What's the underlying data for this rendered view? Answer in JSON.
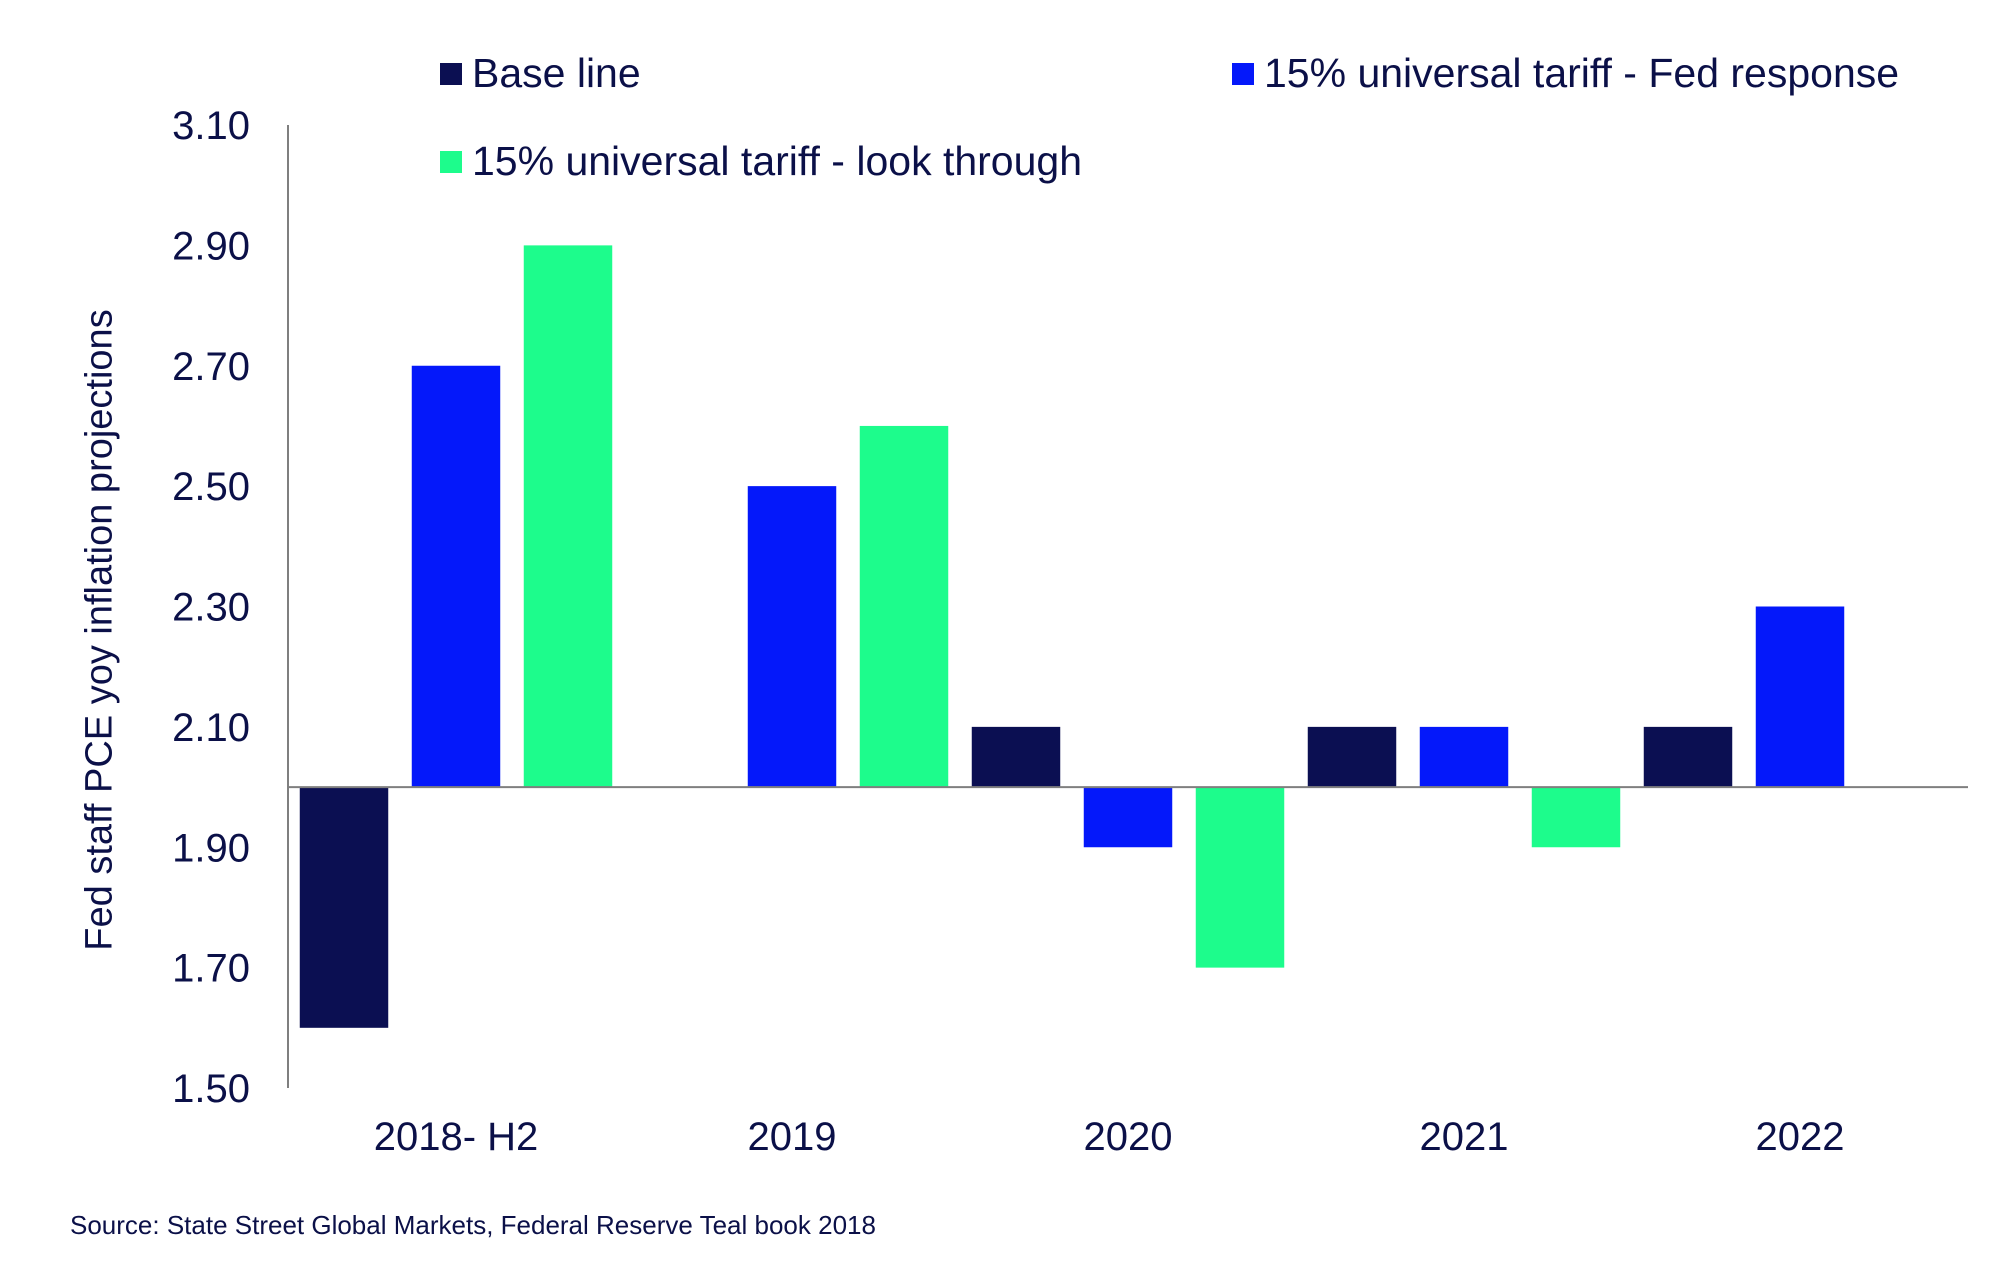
{
  "chart_data": {
    "type": "bar",
    "categories": [
      "2018- H2",
      "2019",
      "2020",
      "2021",
      "2022"
    ],
    "baseline": 2.0,
    "ylim": [
      1.5,
      3.1
    ],
    "yticks": [
      "1.50",
      "1.70",
      "1.90",
      "2.10",
      "2.30",
      "2.50",
      "2.70",
      "2.90",
      "3.10"
    ],
    "ylabel": "Fed staff PCE yoy inflation projections",
    "xlabel": "",
    "series": [
      {
        "name": "Base line",
        "color": "#0b0f52",
        "values": [
          1.6,
          null,
          2.1,
          2.1,
          2.1
        ]
      },
      {
        "name": "15% universal tariff - Fed response",
        "color": "#0418fa",
        "values": [
          2.7,
          2.5,
          1.9,
          2.1,
          2.3
        ]
      },
      {
        "name": "15% universal tariff - look through",
        "color": "#1dfc8c",
        "values": [
          2.9,
          2.6,
          1.7,
          1.9,
          null
        ]
      }
    ]
  },
  "source": "Source: State Street Global Markets, Federal Reserve Teal book 2018"
}
